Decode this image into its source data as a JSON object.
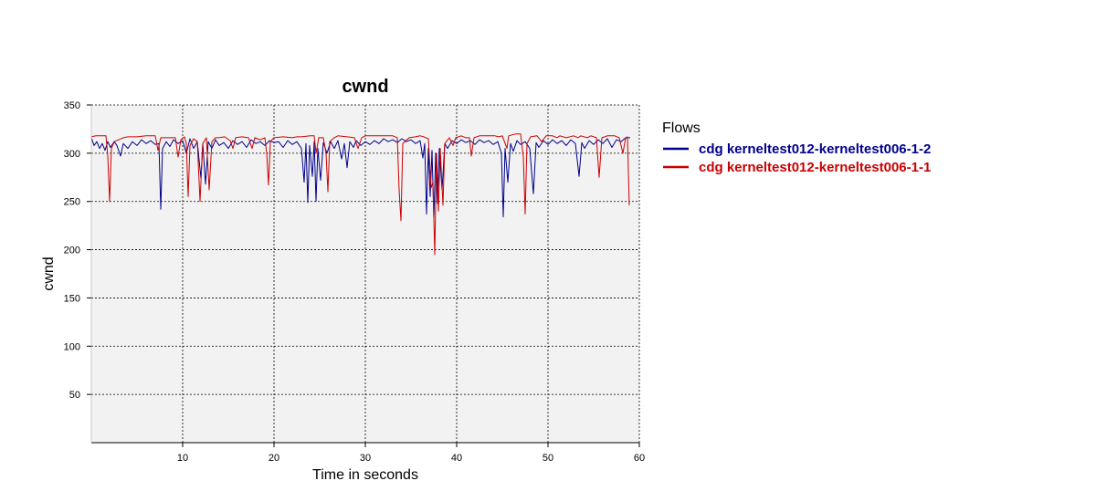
{
  "chart_data": {
    "type": "line",
    "title": "cwnd",
    "xlabel": "Time in seconds",
    "ylabel": "cwnd",
    "xlim": [
      0,
      60
    ],
    "ylim": [
      0,
      350
    ],
    "xticks": [
      10,
      20,
      30,
      40,
      50,
      60
    ],
    "yticks": [
      50,
      100,
      150,
      200,
      250,
      300,
      350
    ],
    "grid": true,
    "legend": {
      "title": "Flows",
      "placement": "right"
    },
    "series": [
      {
        "name": "cdg kerneltest012-kerneltest006-1-2",
        "color": "#00008b",
        "points": [
          [
            0.0,
            316
          ],
          [
            0.3,
            308
          ],
          [
            0.6,
            312
          ],
          [
            0.9,
            305
          ],
          [
            1.2,
            310
          ],
          [
            1.5,
            303
          ],
          [
            1.8,
            312
          ],
          [
            2.1,
            306
          ],
          [
            2.5,
            312
          ],
          [
            2.8,
            308
          ],
          [
            3.2,
            297
          ],
          [
            3.5,
            310
          ],
          [
            4.0,
            305
          ],
          [
            4.5,
            312
          ],
          [
            5.0,
            308
          ],
          [
            5.5,
            314
          ],
          [
            6.0,
            310
          ],
          [
            6.5,
            313
          ],
          [
            7.0,
            309
          ],
          [
            7.4,
            310
          ],
          [
            7.6,
            242
          ],
          [
            7.8,
            305
          ],
          [
            8.2,
            312
          ],
          [
            8.6,
            307
          ],
          [
            9.0,
            314
          ],
          [
            9.5,
            310
          ],
          [
            10.0,
            313
          ],
          [
            10.4,
            300
          ],
          [
            10.8,
            315
          ],
          [
            11.2,
            305
          ],
          [
            11.6,
            312
          ],
          [
            12.0,
            274
          ],
          [
            12.2,
            310
          ],
          [
            12.5,
            268
          ],
          [
            12.8,
            312
          ],
          [
            13.2,
            305
          ],
          [
            13.6,
            314
          ],
          [
            14.0,
            308
          ],
          [
            14.5,
            311
          ],
          [
            15.0,
            305
          ],
          [
            15.5,
            313
          ],
          [
            16.0,
            309
          ],
          [
            16.5,
            312
          ],
          [
            17.0,
            306
          ],
          [
            17.5,
            314
          ],
          [
            18.0,
            310
          ],
          [
            18.5,
            312
          ],
          [
            19.0,
            308
          ],
          [
            19.5,
            313
          ],
          [
            20.0,
            311
          ],
          [
            20.5,
            312
          ],
          [
            21.0,
            306
          ],
          [
            21.5,
            313
          ],
          [
            22.0,
            309
          ],
          [
            22.5,
            312
          ],
          [
            23.0,
            305
          ],
          [
            23.3,
            270
          ],
          [
            23.5,
            310
          ],
          [
            23.7,
            249
          ],
          [
            23.9,
            308
          ],
          [
            24.2,
            276
          ],
          [
            24.4,
            312
          ],
          [
            24.6,
            250
          ],
          [
            24.8,
            305
          ],
          [
            25.1,
            272
          ],
          [
            25.4,
            311
          ],
          [
            25.8,
            300
          ],
          [
            26.2,
            312
          ],
          [
            26.6,
            305
          ],
          [
            27.0,
            313
          ],
          [
            27.4,
            294
          ],
          [
            27.7,
            310
          ],
          [
            28.0,
            285
          ],
          [
            28.3,
            312
          ],
          [
            28.7,
            306
          ],
          [
            29.0,
            313
          ],
          [
            29.5,
            308
          ],
          [
            30.0,
            312
          ],
          [
            30.5,
            309
          ],
          [
            31.0,
            313
          ],
          [
            31.5,
            310
          ],
          [
            32.0,
            315
          ],
          [
            32.5,
            312
          ],
          [
            33.0,
            314
          ],
          [
            33.5,
            311
          ],
          [
            34.0,
            315
          ],
          [
            34.5,
            312
          ],
          [
            35.0,
            314
          ],
          [
            35.5,
            310
          ],
          [
            36.0,
            313
          ],
          [
            36.3,
            295
          ],
          [
            36.5,
            310
          ],
          [
            36.7,
            237
          ],
          [
            36.9,
            305
          ],
          [
            37.1,
            255
          ],
          [
            37.3,
            303
          ],
          [
            37.5,
            232
          ],
          [
            37.7,
            300
          ],
          [
            37.9,
            248
          ],
          [
            38.1,
            305
          ],
          [
            38.4,
            262
          ],
          [
            38.7,
            310
          ],
          [
            39.0,
            305
          ],
          [
            39.5,
            313
          ],
          [
            40.0,
            310
          ],
          [
            40.5,
            314
          ],
          [
            41.0,
            311
          ],
          [
            41.5,
            313
          ],
          [
            42.0,
            309
          ],
          [
            42.5,
            314
          ],
          [
            43.0,
            311
          ],
          [
            43.5,
            313
          ],
          [
            44.0,
            309
          ],
          [
            44.5,
            312
          ],
          [
            44.9,
            300
          ],
          [
            45.1,
            234
          ],
          [
            45.3,
            305
          ],
          [
            45.6,
            270
          ],
          [
            45.9,
            310
          ],
          [
            46.2,
            302
          ],
          [
            46.6,
            313
          ],
          [
            47.0,
            309
          ],
          [
            47.5,
            312
          ],
          [
            48.0,
            305
          ],
          [
            48.4,
            258
          ],
          [
            48.7,
            311
          ],
          [
            49.0,
            306
          ],
          [
            49.5,
            313
          ],
          [
            50.0,
            309
          ],
          [
            50.5,
            314
          ],
          [
            51.0,
            310
          ],
          [
            51.5,
            313
          ],
          [
            52.0,
            308
          ],
          [
            52.5,
            314
          ],
          [
            53.0,
            310
          ],
          [
            53.4,
            276
          ],
          [
            53.7,
            311
          ],
          [
            54.0,
            305
          ],
          [
            54.5,
            313
          ],
          [
            55.0,
            309
          ],
          [
            55.5,
            314
          ],
          [
            56.0,
            310
          ],
          [
            56.5,
            315
          ],
          [
            57.0,
            306
          ],
          [
            57.5,
            314
          ],
          [
            58.0,
            312
          ],
          [
            58.5,
            316
          ],
          [
            59.0,
            316
          ]
        ]
      },
      {
        "name": "cdg kerneltest012-kerneltest006-1-1",
        "color": "#cc0000",
        "points": [
          [
            0.0,
            317
          ],
          [
            0.5,
            318
          ],
          [
            1.0,
            318
          ],
          [
            1.6,
            318
          ],
          [
            1.8,
            297
          ],
          [
            2.0,
            250
          ],
          [
            2.2,
            305
          ],
          [
            2.5,
            312
          ],
          [
            3.0,
            314
          ],
          [
            3.5,
            316
          ],
          [
            4.0,
            317
          ],
          [
            5.0,
            317
          ],
          [
            6.0,
            318
          ],
          [
            7.0,
            318
          ],
          [
            7.3,
            303
          ],
          [
            7.6,
            316
          ],
          [
            8.5,
            316
          ],
          [
            9.2,
            316
          ],
          [
            9.5,
            296
          ],
          [
            9.8,
            314
          ],
          [
            10.2,
            317
          ],
          [
            10.4,
            310
          ],
          [
            10.6,
            255
          ],
          [
            10.8,
            308
          ],
          [
            11.2,
            315
          ],
          [
            11.6,
            312
          ],
          [
            11.9,
            250
          ],
          [
            12.2,
            310
          ],
          [
            12.6,
            316
          ],
          [
            12.9,
            262
          ],
          [
            13.2,
            312
          ],
          [
            13.6,
            316
          ],
          [
            14.0,
            316
          ],
          [
            14.6,
            317
          ],
          [
            15.2,
            313
          ],
          [
            15.5,
            305
          ],
          [
            15.8,
            316
          ],
          [
            16.5,
            317
          ],
          [
            17.2,
            316
          ],
          [
            17.6,
            305
          ],
          [
            17.9,
            316
          ],
          [
            18.5,
            314
          ],
          [
            19.0,
            316
          ],
          [
            19.2,
            300
          ],
          [
            19.4,
            267
          ],
          [
            19.6,
            312
          ],
          [
            20.0,
            316
          ],
          [
            21.0,
            317
          ],
          [
            22.0,
            316
          ],
          [
            22.5,
            317
          ],
          [
            23.0,
            317
          ],
          [
            24.0,
            318
          ],
          [
            24.4,
            318
          ],
          [
            24.6,
            300
          ],
          [
            24.9,
            316
          ],
          [
            25.4,
            316
          ],
          [
            25.7,
            300
          ],
          [
            25.9,
            260
          ],
          [
            26.1,
            312
          ],
          [
            26.6,
            316
          ],
          [
            27.0,
            318
          ],
          [
            28.0,
            317
          ],
          [
            28.8,
            316
          ],
          [
            29.2,
            305
          ],
          [
            29.6,
            316
          ],
          [
            30.0,
            318
          ],
          [
            31.0,
            318
          ],
          [
            32.0,
            318
          ],
          [
            33.0,
            318
          ],
          [
            33.5,
            316
          ],
          [
            33.7,
            262
          ],
          [
            33.9,
            230
          ],
          [
            34.1,
            310
          ],
          [
            34.8,
            316
          ],
          [
            35.5,
            317
          ],
          [
            36.0,
            318
          ],
          [
            36.4,
            317
          ],
          [
            36.9,
            315
          ],
          [
            37.2,
            264
          ],
          [
            37.4,
            270
          ],
          [
            37.6,
            195
          ],
          [
            37.8,
            300
          ],
          [
            38.0,
            240
          ],
          [
            38.2,
            305
          ],
          [
            38.5,
            246
          ],
          [
            38.7,
            310
          ],
          [
            39.2,
            316
          ],
          [
            39.6,
            308
          ],
          [
            39.9,
            316
          ],
          [
            40.5,
            318
          ],
          [
            41.0,
            316
          ],
          [
            41.4,
            316
          ],
          [
            41.6,
            297
          ],
          [
            41.9,
            316
          ],
          [
            42.5,
            318
          ],
          [
            43.5,
            318
          ],
          [
            44.2,
            318
          ],
          [
            44.6,
            317
          ],
          [
            45.0,
            318
          ],
          [
            45.5,
            305
          ],
          [
            45.7,
            318
          ],
          [
            46.5,
            320
          ],
          [
            47.0,
            320
          ],
          [
            47.3,
            296
          ],
          [
            47.5,
            237
          ],
          [
            47.7,
            310
          ],
          [
            48.1,
            317
          ],
          [
            48.8,
            318
          ],
          [
            49.3,
            312
          ],
          [
            49.8,
            318
          ],
          [
            50.5,
            318
          ],
          [
            51.0,
            316
          ],
          [
            51.3,
            318
          ],
          [
            52.0,
            316
          ],
          [
            52.8,
            318
          ],
          [
            53.3,
            316
          ],
          [
            53.6,
            318
          ],
          [
            54.3,
            316
          ],
          [
            54.7,
            318
          ],
          [
            55.3,
            316
          ],
          [
            55.6,
            275
          ],
          [
            55.9,
            316
          ],
          [
            56.5,
            318
          ],
          [
            57.3,
            318
          ],
          [
            57.8,
            316
          ],
          [
            58.2,
            300
          ],
          [
            58.5,
            316
          ],
          [
            58.7,
            317
          ],
          [
            58.9,
            246
          ]
        ]
      }
    ]
  }
}
